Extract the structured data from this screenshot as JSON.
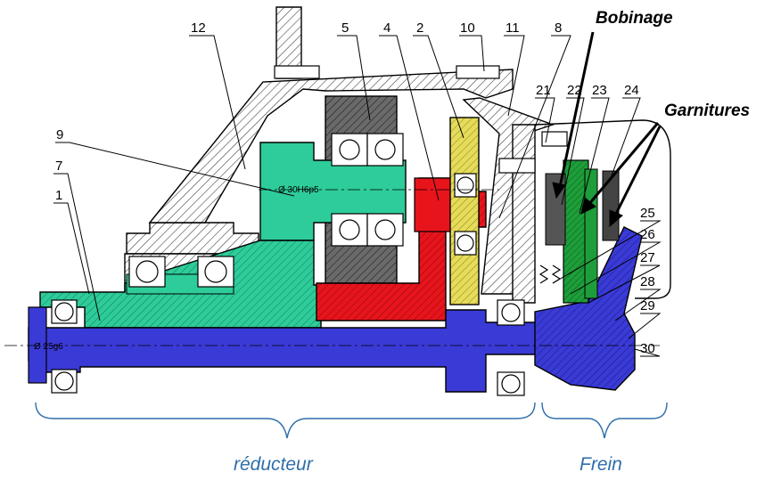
{
  "callouts": {
    "c12": "12",
    "c5": "5",
    "c4": "4",
    "c2": "2",
    "c10": "10",
    "c11": "11",
    "c8": "8",
    "c9": "9",
    "c7": "7",
    "c1": "1",
    "c21": "21",
    "c22": "22",
    "c23": "23",
    "c24": "24",
    "c25": "25",
    "c26": "26",
    "c27": "27",
    "c28": "28",
    "c29": "29",
    "c30": "30"
  },
  "labels": {
    "bobinage": "Bobinage",
    "garnitures": "Garnitures",
    "reducteur": "réducteur",
    "frein": "Frein"
  },
  "dimensions": {
    "shaft_fit": "Ø 30H6p5",
    "end_fit": "Ø 25g6"
  },
  "colors": {
    "shaft": "#3a3ad6",
    "intermediate_shaft": "#2ecc9a",
    "output_sleeve": "#e8141c",
    "pinion": "#e6dc5a",
    "gear": "#5a5a5a",
    "brake_disc": "#1e9e3a",
    "brace": "#2f6eaa"
  }
}
